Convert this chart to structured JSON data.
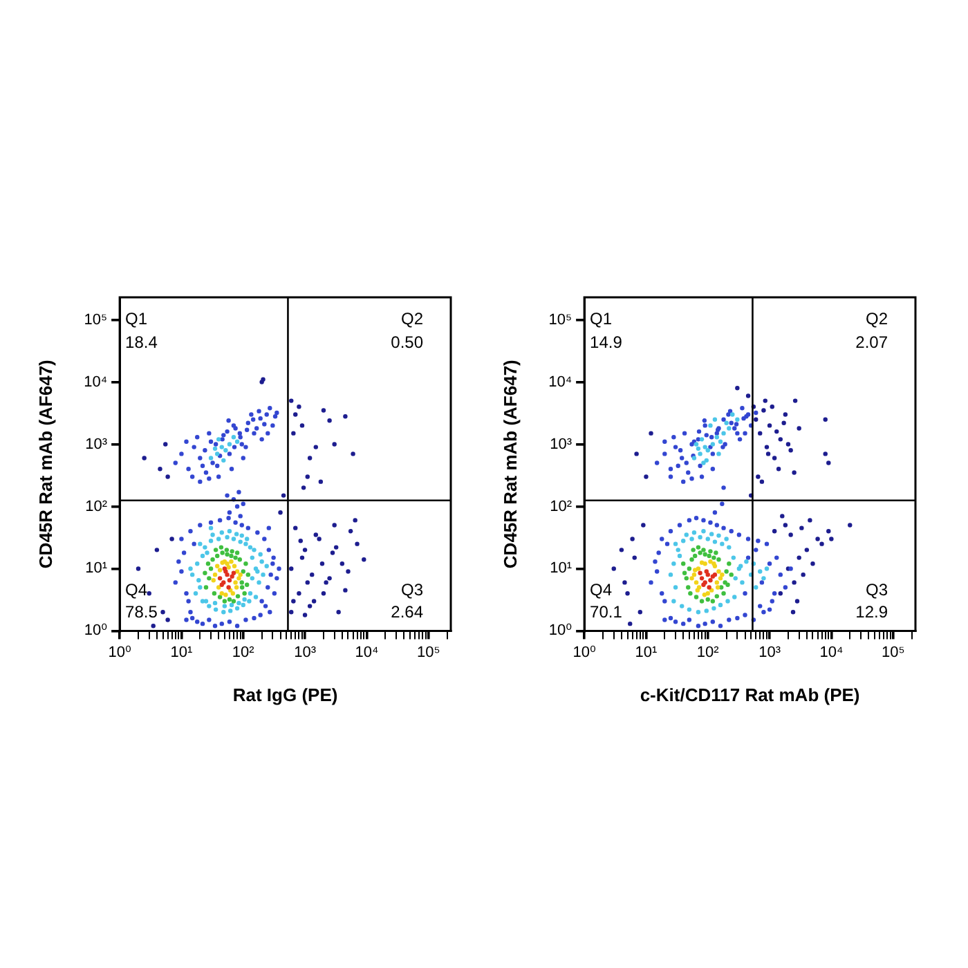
{
  "chart_data": [
    {
      "type": "scatter",
      "xlabel": "Rat IgG (PE)",
      "ylabel": "CD45R Rat mAb (AF647)",
      "log": "xy",
      "marker": "circle",
      "xlim": [
        1,
        230000
      ],
      "ylim": [
        1,
        230000
      ],
      "xticks": [
        {
          "value": 1,
          "label": "10⁰"
        },
        {
          "value": 2,
          "label": null
        },
        {
          "value": 3,
          "label": null
        },
        {
          "value": 4,
          "label": null
        },
        {
          "value": 5,
          "label": null
        },
        {
          "value": 6,
          "label": null
        },
        {
          "value": 7,
          "label": null
        },
        {
          "value": 8,
          "label": null
        },
        {
          "value": 9,
          "label": null
        },
        {
          "value": 10,
          "label": "10¹"
        },
        {
          "value": 20,
          "label": null
        },
        {
          "value": 30,
          "label": null
        },
        {
          "value": 40,
          "label": null
        },
        {
          "value": 50,
          "label": null
        },
        {
          "value": 60,
          "label": null
        },
        {
          "value": 70,
          "label": null
        },
        {
          "value": 80,
          "label": null
        },
        {
          "value": 90,
          "label": null
        },
        {
          "value": 100,
          "label": "10²"
        },
        {
          "value": 200,
          "label": null
        },
        {
          "value": 300,
          "label": null
        },
        {
          "value": 400,
          "label": null
        },
        {
          "value": 500,
          "label": null
        },
        {
          "value": 600,
          "label": null
        },
        {
          "value": 700,
          "label": null
        },
        {
          "value": 800,
          "label": null
        },
        {
          "value": 900,
          "label": null
        },
        {
          "value": 1000,
          "label": "10³"
        },
        {
          "value": 2000,
          "label": null
        },
        {
          "value": 3000,
          "label": null
        },
        {
          "value": 4000,
          "label": null
        },
        {
          "value": 5000,
          "label": null
        },
        {
          "value": 6000,
          "label": null
        },
        {
          "value": 7000,
          "label": null
        },
        {
          "value": 8000,
          "label": null
        },
        {
          "value": 9000,
          "label": null
        },
        {
          "value": 10000,
          "label": "10⁴"
        },
        {
          "value": 20000,
          "label": null
        },
        {
          "value": 30000,
          "label": null
        },
        {
          "value": 40000,
          "label": null
        },
        {
          "value": 50000,
          "label": null
        },
        {
          "value": 60000,
          "label": null
        },
        {
          "value": 70000,
          "label": null
        },
        {
          "value": 80000,
          "label": null
        },
        {
          "value": 90000,
          "label": null
        },
        {
          "value": 100000,
          "label": "10⁵"
        },
        {
          "value": 200000,
          "label": null
        }
      ],
      "yticks": [
        {
          "value": 1,
          "label": "10⁰"
        },
        {
          "value": 10,
          "label": "10¹"
        },
        {
          "value": 100,
          "label": "10²"
        },
        {
          "value": 1000,
          "label": "10³"
        },
        {
          "value": 10000,
          "label": "10⁴"
        },
        {
          "value": 100000,
          "label": "10⁵"
        }
      ],
      "ref_lines": [
        {
          "axis": "x",
          "value": 530,
          "color": "#000000"
        },
        {
          "axis": "y",
          "value": 125,
          "color": "#000000"
        }
      ],
      "annotations": [
        "Q1",
        "18.4",
        "Q2",
        "0.50",
        "Q4",
        "78.5",
        "Q3",
        "2.64"
      ],
      "series": [
        {
          "color": "#1d1d8f",
          "x": [
            600,
            800,
            1000,
            1300,
            1700,
            2200,
            3000,
            4000,
            5500,
            7000,
            650,
            900,
            1200,
            1500,
            2000,
            2800,
            3500,
            5000,
            6500,
            9000,
            700,
            850,
            1100,
            1400,
            1900,
            2500,
            3200,
            4500,
            600,
            1000,
            600,
            700,
            900,
            1200,
            2000,
            3000,
            1500,
            800,
            2500,
            6000,
            650,
            1100,
            1800,
            950,
            4500,
            2,
            3,
            4,
            5,
            3.5,
            6,
            2.5,
            4.5,
            5.5,
            200,
            210,
            6,
            7,
            400,
            450
          ],
          "values": [
            10,
            4,
            20,
            8,
            30,
            6,
            50,
            12,
            40,
            25,
            3,
            15,
            2.5,
            35,
            4,
            18,
            2,
            9,
            60,
            14,
            45,
            28,
            6,
            3,
            12,
            7,
            22,
            4.5,
            2,
            1.8,
            5000,
            3000,
            2000,
            600,
            3500,
            1000,
            900,
            4000,
            2400,
            700,
            1500,
            300,
            250,
            200,
            2800,
            10,
            4,
            20,
            2,
            1.2,
            300,
            600,
            400,
            1000,
            10000,
            11000,
            1.5,
            30,
            80,
            150
          ]
        },
        {
          "color": "#3346d1",
          "x": [
            8,
            10,
            12,
            9,
            11,
            13,
            16,
            14,
            250,
            280,
            300,
            320,
            260,
            220,
            350,
            380,
            200,
            230,
            270,
            310,
            12,
            15,
            18,
            22,
            28,
            35,
            45,
            60,
            80,
            110,
            150,
            190,
            10,
            14,
            20,
            30,
            42,
            58,
            75,
            95,
            120,
            170,
            260,
            60,
            80,
            70,
            90,
            55,
            100,
            85,
            8,
            10,
            13,
            16,
            20,
            25,
            30,
            38,
            48,
            60,
            75,
            95,
            120,
            150,
            190,
            240,
            300,
            350,
            12,
            18,
            24,
            32,
            42,
            55,
            70,
            90,
            115,
            145,
            180,
            220,
            270,
            330,
            15,
            22,
            28,
            36,
            46,
            58,
            72,
            88,
            110,
            135,
            165,
            200,
            250,
            20,
            28,
            40,
            65,
            100
          ],
          "values": [
            6,
            9,
            4,
            13,
            18,
            3,
            25,
            2,
            5,
            8,
            12,
            4,
            20,
            30,
            7,
            10,
            3,
            2.5,
            2,
            15,
            1.5,
            1.6,
            1.4,
            1.3,
            1.5,
            1.2,
            1.3,
            1.4,
            1.2,
            1.5,
            1.6,
            1.8,
            30,
            40,
            50,
            55,
            60,
            65,
            55,
            50,
            45,
            38,
            45,
            80,
            100,
            130,
            70,
            150,
            110,
            170,
            500,
            700,
            400,
            900,
            600,
            350,
            1100,
            450,
            1400,
            700,
            1800,
            1000,
            2200,
            1500,
            2600,
            3000,
            2000,
            3200,
            1100,
            1300,
            800,
            500,
            650,
            1600,
            2000,
            1300,
            1700,
            2500,
            3400,
            2100,
            3800,
            2800,
            300,
            450,
            1500,
            1000,
            1200,
            2400,
            900,
            1500,
            900,
            3000,
            1800,
            1200,
            1500,
            250,
            280,
            300,
            400,
            600
          ]
        },
        {
          "color": "#4cc6e8",
          "x": [
            15,
            18,
            20,
            22,
            140,
            160,
            180,
            200,
            130,
            150,
            20,
            25,
            30,
            40,
            55,
            70,
            90,
            110,
            130,
            17,
            22,
            28,
            36,
            48,
            62,
            80,
            100,
            125,
            160,
            19,
            24,
            32,
            45,
            60,
            78,
            95,
            115,
            140,
            170,
            210,
            26,
            35,
            50,
            65,
            85,
            105,
            240,
            14,
            190,
            30,
            30,
            38,
            45,
            52,
            60,
            40,
            48,
            70,
            35,
            80
          ],
          "values": [
            8,
            12,
            5,
            16,
            7,
            10,
            6,
            13,
            4,
            20,
            25,
            3,
            28,
            30,
            32,
            30,
            27,
            25,
            22,
            4,
            3,
            2.5,
            2.2,
            2,
            2.1,
            2.3,
            2.6,
            3,
            3.5,
            6.5,
            22,
            35,
            38,
            40,
            36,
            34,
            30,
            15,
            9,
            8,
            18,
            2.8,
            2.5,
            2.6,
            2.8,
            3.2,
            11,
            10,
            17,
            45,
            600,
            700,
            900,
            800,
            1000,
            1200,
            550,
            1300,
            850,
            1100
          ]
        },
        {
          "color": "#3fbf3f",
          "x": [
            28,
            30,
            95,
            100,
            110,
            25,
            32,
            38,
            46,
            55,
            64,
            75,
            88,
            105,
            27,
            34,
            42,
            50,
            60,
            70,
            82,
            96,
            36,
            44,
            54,
            66,
            80,
            120,
            24,
            115
          ],
          "values": [
            7,
            10,
            6,
            9,
            12,
            5,
            14,
            16,
            18,
            17,
            16,
            15,
            14,
            4,
            12,
            4,
            3.5,
            3,
            3.2,
            3,
            3.6,
            5,
            20,
            22,
            20,
            19,
            18,
            8,
            8.5,
            5.5
          ]
        },
        {
          "color": "#f2d31b",
          "x": [
            35,
            40,
            75,
            80,
            38,
            85,
            55,
            62,
            45,
            72,
            33,
            90,
            50,
            68,
            58,
            42,
            78,
            52,
            64,
            46
          ],
          "values": [
            8,
            5,
            6,
            9,
            11,
            7,
            12,
            4.5,
            4,
            11,
            6.5,
            8,
            13,
            4,
            10.5,
            9.5,
            5,
            3.8,
            13,
            12.5
          ]
        },
        {
          "color": "#e0301e",
          "x": [
            42,
            48,
            55,
            60,
            66,
            52,
            45,
            58,
            70,
            50
          ],
          "values": [
            7,
            6,
            8,
            6.5,
            7.5,
            9,
            5.5,
            5,
            8.5,
            10
          ]
        }
      ]
    },
    {
      "type": "scatter",
      "xlabel": "c-Kit/CD117 Rat mAb (PE)",
      "ylabel": "CD45R Rat mAb (AF647)",
      "log": "xy",
      "marker": "circle",
      "xlim": [
        1,
        230000
      ],
      "ylim": [
        1,
        230000
      ],
      "xticks": [
        {
          "value": 1,
          "label": "10⁰"
        },
        {
          "value": 2,
          "label": null
        },
        {
          "value": 3,
          "label": null
        },
        {
          "value": 4,
          "label": null
        },
        {
          "value": 5,
          "label": null
        },
        {
          "value": 6,
          "label": null
        },
        {
          "value": 7,
          "label": null
        },
        {
          "value": 8,
          "label": null
        },
        {
          "value": 9,
          "label": null
        },
        {
          "value": 10,
          "label": "10¹"
        },
        {
          "value": 20,
          "label": null
        },
        {
          "value": 30,
          "label": null
        },
        {
          "value": 40,
          "label": null
        },
        {
          "value": 50,
          "label": null
        },
        {
          "value": 60,
          "label": null
        },
        {
          "value": 70,
          "label": null
        },
        {
          "value": 80,
          "label": null
        },
        {
          "value": 90,
          "label": null
        },
        {
          "value": 100,
          "label": "10²"
        },
        {
          "value": 200,
          "label": null
        },
        {
          "value": 300,
          "label": null
        },
        {
          "value": 400,
          "label": null
        },
        {
          "value": 500,
          "label": null
        },
        {
          "value": 600,
          "label": null
        },
        {
          "value": 700,
          "label": null
        },
        {
          "value": 800,
          "label": null
        },
        {
          "value": 900,
          "label": null
        },
        {
          "value": 1000,
          "label": "10³"
        },
        {
          "value": 2000,
          "label": null
        },
        {
          "value": 3000,
          "label": null
        },
        {
          "value": 4000,
          "label": null
        },
        {
          "value": 5000,
          "label": null
        },
        {
          "value": 6000,
          "label": null
        },
        {
          "value": 7000,
          "label": null
        },
        {
          "value": 8000,
          "label": null
        },
        {
          "value": 9000,
          "label": null
        },
        {
          "value": 10000,
          "label": "10⁴"
        },
        {
          "value": 20000,
          "label": null
        },
        {
          "value": 30000,
          "label": null
        },
        {
          "value": 40000,
          "label": null
        },
        {
          "value": 50000,
          "label": null
        },
        {
          "value": 60000,
          "label": null
        },
        {
          "value": 70000,
          "label": null
        },
        {
          "value": 80000,
          "label": null
        },
        {
          "value": 90000,
          "label": null
        },
        {
          "value": 100000,
          "label": "10⁵"
        },
        {
          "value": 200000,
          "label": null
        }
      ],
      "yticks": [
        {
          "value": 1,
          "label": "10⁰"
        },
        {
          "value": 10,
          "label": "10¹"
        },
        {
          "value": 100,
          "label": "10²"
        },
        {
          "value": 1000,
          "label": "10³"
        },
        {
          "value": 10000,
          "label": "10⁴"
        },
        {
          "value": 100000,
          "label": "10⁵"
        }
      ],
      "ref_lines": [
        {
          "axis": "x",
          "value": 530,
          "color": "#000000"
        },
        {
          "axis": "y",
          "value": 125,
          "color": "#000000"
        }
      ],
      "annotations": [
        "Q1",
        "14.9",
        "Q2",
        "2.07",
        "Q4",
        "70.1",
        "Q3",
        "12.9"
      ],
      "series": [
        {
          "color": "#1d1d8f",
          "x": [
            550,
            600,
            700,
            800,
            900,
            1000,
            1200,
            1500,
            1800,
            2200,
            2600,
            3000,
            650,
            750,
            1100,
            1400,
            1700,
            2000,
            850,
            950,
            8000,
            8000,
            9000,
            2500,
            1300,
            1500,
            2000,
            2500,
            3000,
            3500,
            4000,
            5000,
            6000,
            2200,
            2800,
            1800,
            3300,
            4500,
            7000,
            1200,
            1600,
            9000,
            10000,
            20000,
            2400,
            3,
            4,
            5,
            6,
            7,
            8,
            4.5,
            6.5,
            10,
            12,
            9,
            5.5,
            300,
            450,
            500
          ],
          "values": [
            4000,
            2500,
            1500,
            3500,
            900,
            2000,
            600,
            1200,
            3000,
            800,
            5000,
            1800,
            300,
            250,
            4000,
            400,
            2200,
            1000,
            5000,
            700,
            2500,
            700,
            500,
            350,
            1600,
            4,
            10,
            6,
            15,
            8,
            20,
            12,
            30,
            35,
            3,
            50,
            45,
            60,
            25,
            40,
            70,
            40,
            30,
            50,
            2,
            10,
            20,
            4,
            30,
            700,
            2,
            6,
            15,
            300,
            1500,
            50,
            1.3,
            8000,
            6000,
            150
          ]
        },
        {
          "color": "#3346d1",
          "x": [
            12,
            15,
            18,
            14,
            16,
            20,
            22,
            400,
            450,
            600,
            750,
            1000,
            1200,
            1500,
            1800,
            2200,
            900,
            1100,
            1300,
            700,
            20,
            25,
            30,
            40,
            50,
            70,
            90,
            120,
            160,
            220,
            300,
            400,
            550,
            800,
            1000,
            18,
            25,
            35,
            50,
            65,
            85,
            110,
            140,
            180,
            240,
            320,
            450,
            650,
            130,
            170,
            15,
            20,
            25,
            30,
            38,
            48,
            60,
            75,
            95,
            120,
            150,
            190,
            240,
            300,
            380,
            450,
            500,
            600,
            20,
            28,
            36,
            45,
            58,
            72,
            90,
            115,
            145,
            180,
            230,
            290,
            360,
            420,
            25,
            33,
            42,
            55,
            70,
            88,
            110,
            140,
            175,
            215,
            270,
            330,
            400,
            40,
            55,
            80,
            120,
            180
          ],
          "values": [
            6,
            9,
            4,
            13,
            18,
            3,
            25,
            4,
            15,
            20,
            6,
            12,
            4,
            8,
            5,
            10,
            25,
            3,
            15,
            2.5,
            1.5,
            1.6,
            1.4,
            1.3,
            1.5,
            1.2,
            1.3,
            1.4,
            1.2,
            1.5,
            1.6,
            1.8,
            1.5,
            2,
            2.2,
            30,
            40,
            50,
            60,
            65,
            60,
            55,
            50,
            45,
            40,
            35,
            30,
            28,
            80,
            110,
            500,
            700,
            400,
            900,
            600,
            350,
            1100,
            450,
            1400,
            700,
            1800,
            1000,
            2200,
            1500,
            2600,
            3000,
            2000,
            3200,
            1100,
            1300,
            800,
            500,
            650,
            1600,
            2000,
            1300,
            1700,
            2500,
            3400,
            2100,
            3800,
            2800,
            300,
            450,
            1500,
            1000,
            1200,
            2400,
            900,
            1500,
            900,
            3000,
            1800,
            1200,
            1500,
            250,
            280,
            300,
            400,
            200
          ]
        },
        {
          "color": "#4cc6e8",
          "x": [
            25,
            28,
            30,
            35,
            280,
            320,
            360,
            420,
            500,
            600,
            700,
            800,
            30,
            40,
            55,
            75,
            100,
            130,
            170,
            220,
            28,
            38,
            50,
            70,
            95,
            125,
            160,
            210,
            270,
            33,
            45,
            60,
            85,
            115,
            150,
            200,
            260,
            340,
            550,
            900,
            60,
            75,
            90,
            100,
            120,
            80,
            95,
            140,
            70,
            160,
            110,
            130,
            200,
            250,
            180,
            85,
            65,
            150,
            300,
            220
          ],
          "values": [
            8,
            12,
            5,
            16,
            7,
            10,
            6,
            13,
            8,
            5,
            9,
            7,
            25,
            28,
            30,
            32,
            30,
            27,
            25,
            22,
            3,
            2.5,
            2.2,
            2,
            2.1,
            2.3,
            2.6,
            3,
            3.5,
            20,
            35,
            38,
            40,
            36,
            34,
            30,
            15,
            11,
            12,
            10,
            600,
            700,
            900,
            800,
            1000,
            1200,
            550,
            1300,
            850,
            1100,
            2000,
            2500,
            2200,
            3000,
            1500,
            500,
            1000,
            700,
            2500,
            1800
          ]
        },
        {
          "color": "#3fbf3f",
          "x": [
            45,
            50,
            190,
            200,
            220,
            48,
            55,
            62,
            75,
            90,
            105,
            125,
            150,
            180,
            40,
            52,
            65,
            80,
            100,
            120,
            140,
            165,
            58,
            70,
            85,
            110,
            135,
            240,
            42,
            210
          ],
          "values": [
            7,
            10,
            6,
            9,
            12,
            5,
            14,
            16,
            18,
            17,
            16,
            15,
            14,
            4,
            12,
            4,
            3.5,
            3,
            3.2,
            3,
            3.6,
            5,
            20,
            22,
            20,
            19,
            18,
            8,
            8.5,
            5.5
          ]
        },
        {
          "color": "#f2d31b",
          "x": [
            60,
            65,
            70,
            140,
            150,
            160,
            68,
            130,
            90,
            115,
            55,
            170,
            80,
            125,
            100,
            72,
            145,
            110,
            88,
            62
          ],
          "values": [
            8,
            6,
            10,
            6,
            9,
            7,
            4.5,
            11,
            12,
            4.5,
            7,
            8,
            12.5,
            12,
            4,
            5,
            5,
            13,
            3.8,
            9.5
          ]
        },
        {
          "color": "#e0301e",
          "x": [
            80,
            90,
            100,
            110,
            120,
            95,
            85,
            105,
            130,
            75
          ],
          "values": [
            7,
            6,
            8,
            6.5,
            7.5,
            9,
            5.5,
            5,
            8,
            8.5
          ]
        }
      ]
    }
  ]
}
